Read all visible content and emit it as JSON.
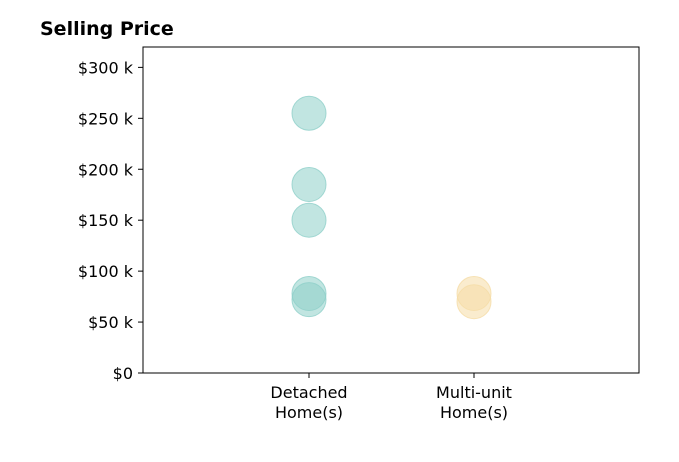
{
  "chart_data": {
    "type": "scatter",
    "title": "Selling Price",
    "xlabel": "",
    "ylabel": "",
    "categories": [
      "Detached Home(s)",
      "Multi-unit Home(s)"
    ],
    "category_lines": [
      [
        "Detached",
        "Home(s)"
      ],
      [
        "Multi-unit",
        "Home(s)"
      ]
    ],
    "ylim": [
      0,
      320000
    ],
    "yticks": [
      0,
      50000,
      100000,
      150000,
      200000,
      250000,
      300000
    ],
    "ytick_labels": [
      "$0",
      "$50 k",
      "$100 k",
      "$150 k",
      "$200 k",
      "$250 k",
      "$300 k"
    ],
    "grid": false,
    "series": [
      {
        "category": "Detached Home(s)",
        "color": "#8ecfc9",
        "values": [
          255000,
          185000,
          150000,
          78000,
          72000
        ]
      },
      {
        "category": "Multi-unit Home(s)",
        "color": "#f5dca6",
        "values": [
          78000,
          70000
        ]
      }
    ]
  }
}
